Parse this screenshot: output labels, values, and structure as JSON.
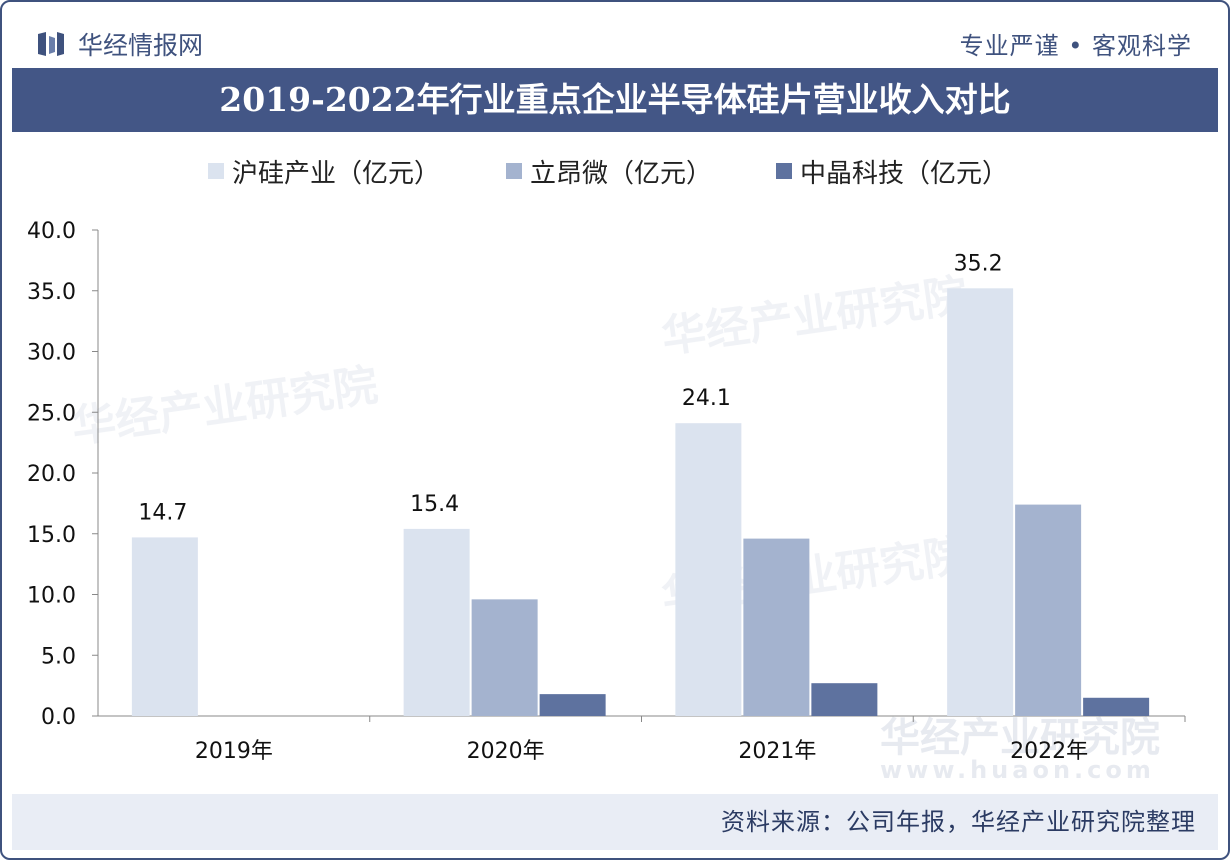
{
  "header": {
    "brand": "华经情报网",
    "slogan": "专业严谨 • 客观科学"
  },
  "watermark": {
    "text": "华经产业研究院",
    "url": "www.huaon.com"
  },
  "chart_data": {
    "type": "bar",
    "title": "2019-2022年行业重点企业半导体硅片营业收入对比",
    "categories": [
      "2019年",
      "2020年",
      "2021年",
      "2022年"
    ],
    "series": [
      {
        "name": "沪硅产业（亿元）",
        "values": [
          14.7,
          15.4,
          24.1,
          35.2
        ],
        "color": "#dbe3ef",
        "labels": [
          "14.7",
          "15.4",
          "24.1",
          "35.2"
        ]
      },
      {
        "name": "立昂微（亿元）",
        "values": [
          0,
          9.6,
          14.6,
          17.4
        ],
        "color": "#a4b3cf",
        "labels": []
      },
      {
        "name": "中晶科技（亿元）",
        "values": [
          0,
          1.8,
          2.7,
          1.5
        ],
        "color": "#5e729f",
        "labels": []
      }
    ],
    "yticks": [
      "0.0",
      "5.0",
      "10.0",
      "15.0",
      "20.0",
      "25.0",
      "30.0",
      "35.0",
      "40.0"
    ],
    "ylim": [
      0,
      40
    ],
    "legend_position": "top",
    "grid": false
  },
  "footer": {
    "source": "资料来源：公司年报，华经产业研究院整理"
  }
}
